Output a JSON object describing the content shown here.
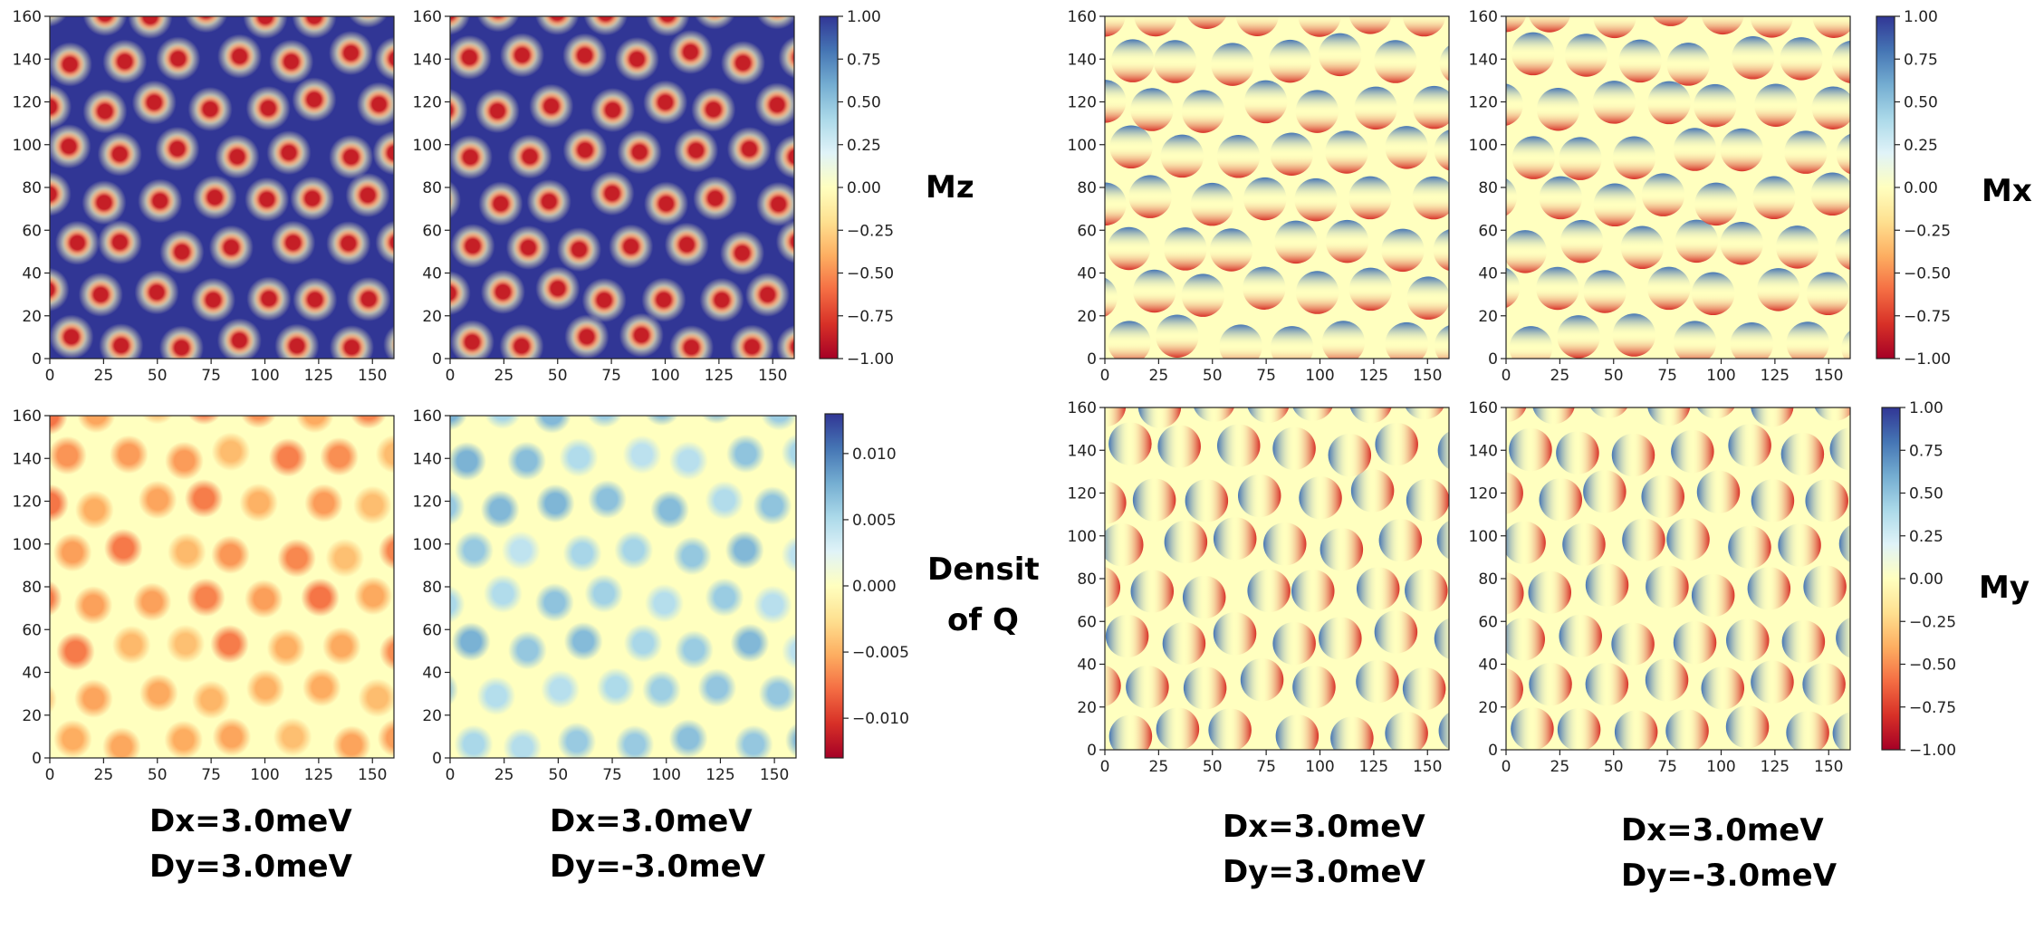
{
  "figure": {
    "panel_labels": {
      "mz": "Mz",
      "density": [
        "Densit",
        "of Q"
      ],
      "mx": "Mx",
      "my": "My"
    },
    "captions": [
      {
        "dx": "Dx=3.0meV",
        "dy": "Dy=3.0meV"
      },
      {
        "dx": "Dx=3.0meV",
        "dy": "Dy=-3.0meV"
      },
      {
        "dx": "Dx=3.0meV",
        "dy": "Dy=3.0meV"
      },
      {
        "dx": "Dx=3.0meV",
        "dy": "Dy=-3.0meV"
      }
    ]
  },
  "colors": {
    "colormap": "RdYlBu",
    "cmap_stops": [
      "#a50026",
      "#d73027",
      "#f46d43",
      "#fdae61",
      "#fee090",
      "#ffffbf",
      "#e0f3f8",
      "#abd9e9",
      "#74add1",
      "#4575b4",
      "#313695"
    ]
  },
  "chart_data": [
    {
      "id": "mz-left",
      "type": "heatmap",
      "quantity": "Mz",
      "xlim": [
        0,
        160
      ],
      "ylim": [
        0,
        160
      ],
      "xticks": [
        "0",
        "25",
        "50",
        "75",
        "100",
        "125",
        "150"
      ],
      "yticks": [
        "0",
        "20",
        "40",
        "60",
        "80",
        "100",
        "120",
        "140",
        "160"
      ],
      "background_value": 1.0,
      "feature_value": -1.0,
      "pattern": "skyrmion-lattice"
    },
    {
      "id": "mz-right",
      "type": "heatmap",
      "quantity": "Mz",
      "xlim": [
        0,
        160
      ],
      "ylim": [
        0,
        160
      ],
      "xticks": [
        "0",
        "25",
        "50",
        "75",
        "100",
        "125",
        "150"
      ],
      "yticks": [
        "0",
        "20",
        "40",
        "60",
        "80",
        "100",
        "120",
        "140",
        "160"
      ],
      "background_value": 1.0,
      "feature_value": -1.0,
      "pattern": "skyrmion-lattice"
    },
    {
      "id": "mz-colorbar",
      "type": "colorbar",
      "range": [
        -1.0,
        1.0
      ],
      "ticks": [
        "1.00",
        "0.75",
        "0.50",
        "0.25",
        "0.00",
        "−0.25",
        "−0.50",
        "−0.75",
        "−1.00"
      ]
    },
    {
      "id": "q-left",
      "type": "heatmap",
      "quantity": "Density of Q",
      "xlim": [
        0,
        160
      ],
      "ylim": [
        0,
        160
      ],
      "xticks": [
        "0",
        "25",
        "50",
        "75",
        "100",
        "125",
        "150"
      ],
      "yticks": [
        "0",
        "20",
        "40",
        "60",
        "80",
        "100",
        "120",
        "140",
        "160"
      ],
      "background_value": 0.0,
      "feature_value": -0.006,
      "pattern": "skyrmion-lattice"
    },
    {
      "id": "q-right",
      "type": "heatmap",
      "quantity": "Density of Q",
      "xlim": [
        0,
        160
      ],
      "ylim": [
        0,
        160
      ],
      "xticks": [
        "0",
        "25",
        "50",
        "75",
        "100",
        "125",
        "150"
      ],
      "yticks": [
        "0",
        "20",
        "40",
        "60",
        "80",
        "100",
        "120",
        "140",
        "160"
      ],
      "background_value": 0.0,
      "feature_value": 0.006,
      "pattern": "skyrmion-lattice"
    },
    {
      "id": "q-colorbar",
      "type": "colorbar",
      "range": [
        -0.013,
        0.013
      ],
      "ticks": [
        "0.010",
        "0.005",
        "0.000",
        "−0.005",
        "−0.010"
      ]
    },
    {
      "id": "mx-left",
      "type": "heatmap",
      "quantity": "Mx",
      "xlim": [
        0,
        160
      ],
      "ylim": [
        0,
        160
      ],
      "xticks": [
        "0",
        "25",
        "50",
        "75",
        "100",
        "125",
        "150"
      ],
      "yticks": [
        "0",
        "20",
        "40",
        "60",
        "80",
        "100",
        "120",
        "140",
        "160"
      ],
      "background_value": 0.0,
      "feature_value": 0.9,
      "pattern": "dipole-vertical"
    },
    {
      "id": "mx-right",
      "type": "heatmap",
      "quantity": "Mx",
      "xlim": [
        0,
        160
      ],
      "ylim": [
        0,
        160
      ],
      "xticks": [
        "0",
        "25",
        "50",
        "75",
        "100",
        "125",
        "150"
      ],
      "yticks": [
        "0",
        "20",
        "40",
        "60",
        "80",
        "100",
        "120",
        "140",
        "160"
      ],
      "background_value": 0.0,
      "feature_value": 0.9,
      "pattern": "dipole-vertical"
    },
    {
      "id": "mx-colorbar",
      "type": "colorbar",
      "range": [
        -1.0,
        1.0
      ],
      "ticks": [
        "1.00",
        "0.75",
        "0.50",
        "0.25",
        "0.00",
        "−0.25",
        "−0.50",
        "−0.75",
        "−1.00"
      ]
    },
    {
      "id": "my-left",
      "type": "heatmap",
      "quantity": "My",
      "xlim": [
        0,
        160
      ],
      "ylim": [
        0,
        160
      ],
      "xticks": [
        "0",
        "25",
        "50",
        "75",
        "100",
        "125",
        "150"
      ],
      "yticks": [
        "0",
        "20",
        "40",
        "60",
        "80",
        "100",
        "120",
        "140",
        "160"
      ],
      "background_value": 0.0,
      "feature_value": 0.9,
      "pattern": "dipole-horizontal"
    },
    {
      "id": "my-right",
      "type": "heatmap",
      "quantity": "My",
      "xlim": [
        0,
        160
      ],
      "ylim": [
        0,
        160
      ],
      "xticks": [
        "0",
        "25",
        "50",
        "75",
        "100",
        "125",
        "150"
      ],
      "yticks": [
        "0",
        "20",
        "40",
        "60",
        "80",
        "100",
        "120",
        "140",
        "160"
      ],
      "background_value": 0.0,
      "feature_value": 0.9,
      "pattern": "dipole-horizontal"
    },
    {
      "id": "my-colorbar",
      "type": "colorbar",
      "range": [
        -1.0,
        1.0
      ],
      "ticks": [
        "1.00",
        "0.75",
        "0.50",
        "0.25",
        "0.00",
        "−0.25",
        "−0.50",
        "−0.75",
        "−1.00"
      ]
    }
  ]
}
